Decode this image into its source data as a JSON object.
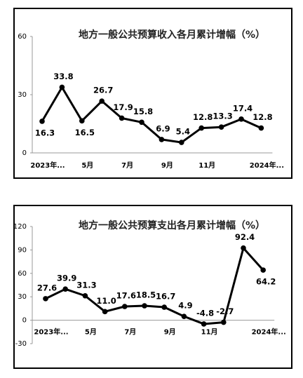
{
  "chart_data": [
    {
      "type": "line",
      "title": "地方一般公共预算收入各月累计增幅（%）",
      "categories": [
        "2023年...",
        null,
        "5月",
        null,
        "7月",
        null,
        "9月",
        null,
        "11月",
        null,
        null,
        "2024年..."
      ],
      "series": [
        {
          "name": "收入",
          "color": "#000000",
          "values": [
            16.3,
            33.8,
            16.5,
            26.7,
            17.9,
            15.8,
            6.9,
            5.4,
            12.8,
            13.3,
            17.4,
            12.8
          ],
          "value_labels": [
            "16.3",
            "33.8",
            "16.5",
            "26.7",
            "17.9",
            "15.8",
            "6.9",
            "5.4",
            "12.8",
            "13.3",
            "17.4",
            "12.8"
          ]
        }
      ],
      "ylim": [
        0,
        60
      ],
      "yticks": [
        0,
        30,
        60
      ],
      "grid": false
    },
    {
      "type": "line",
      "title": "地方一般公共预算支出各月累计增幅（%）",
      "categories": [
        "2023年...",
        null,
        "5月",
        null,
        "7月",
        null,
        "9月",
        null,
        "11月",
        null,
        null,
        "2024年..."
      ],
      "series": [
        {
          "name": "支出",
          "color": "#000000",
          "values": [
            27.6,
            39.9,
            31.3,
            11.0,
            17.6,
            18.5,
            16.7,
            4.9,
            -4.8,
            -2.7,
            92.4,
            64.2
          ],
          "value_labels": [
            "27.6",
            "39.9",
            "31.3",
            "11.0",
            "17.6",
            "18.5",
            "16.7",
            "4.9",
            "-4.8",
            "-2.7",
            "92.4",
            "64.2"
          ]
        }
      ],
      "ylim": [
        -30,
        120
      ],
      "yticks": [
        -30,
        0,
        30,
        60,
        90,
        120
      ],
      "grid": false
    }
  ]
}
